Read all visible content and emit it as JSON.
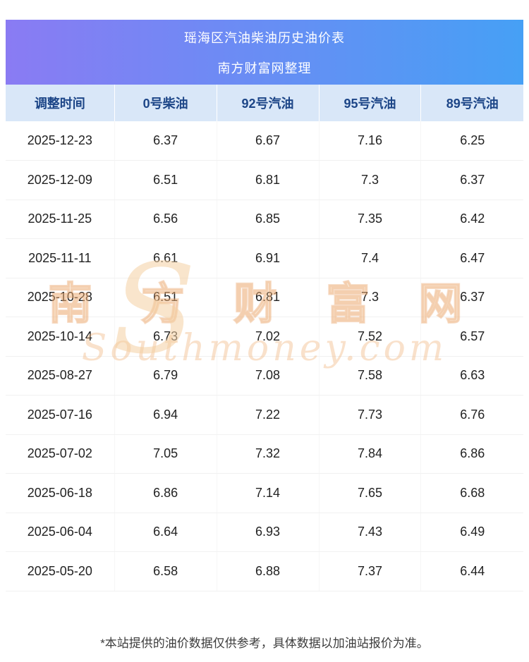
{
  "page": {
    "title": "瑶海区汽油柴油历史油价表",
    "subtitle": "南方财富网整理"
  },
  "chart_data": {
    "type": "table",
    "title": "瑶海区汽油柴油历史油价表",
    "subtitle": "南方财富网整理",
    "columns": [
      "调整时间",
      "0号柴油",
      "92号汽油",
      "95号汽油",
      "89号汽油"
    ],
    "rows": [
      [
        "2025-12-23",
        "6.37",
        "6.67",
        "7.16",
        "6.25"
      ],
      [
        "2025-12-09",
        "6.51",
        "6.81",
        "7.3",
        "6.37"
      ],
      [
        "2025-11-25",
        "6.56",
        "6.85",
        "7.35",
        "6.42"
      ],
      [
        "2025-11-11",
        "6.61",
        "6.91",
        "7.4",
        "6.47"
      ],
      [
        "2025-10-28",
        "6.51",
        "6.81",
        "7.3",
        "6.37"
      ],
      [
        "2025-10-14",
        "6.73",
        "7.02",
        "7.52",
        "6.57"
      ],
      [
        "2025-08-27",
        "6.79",
        "7.08",
        "7.58",
        "6.63"
      ],
      [
        "2025-07-16",
        "6.94",
        "7.22",
        "7.73",
        "6.76"
      ],
      [
        "2025-07-02",
        "7.05",
        "7.32",
        "7.84",
        "6.86"
      ],
      [
        "2025-06-18",
        "6.86",
        "7.14",
        "7.65",
        "6.68"
      ],
      [
        "2025-06-04",
        "6.64",
        "6.93",
        "7.43",
        "6.49"
      ],
      [
        "2025-05-20",
        "6.58",
        "6.88",
        "7.37",
        "6.44"
      ]
    ]
  },
  "watermark": {
    "initial": "S",
    "cn": "南 方 财 富 网",
    "en": "Southmoney.com"
  },
  "footer": {
    "note": "*本站提供的油价数据仅供参考，具体数据以加油站报价为准。"
  },
  "colors": {
    "banner_gradient_left": "#8a7bf3",
    "banner_gradient_right": "#46a0f5",
    "header_row_bg": "#d9e7f8",
    "header_row_text": "#1c4587"
  }
}
